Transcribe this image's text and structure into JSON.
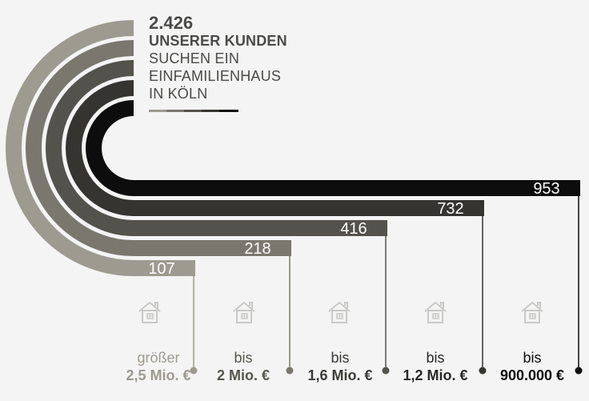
{
  "headline": {
    "total": "2.426",
    "line1": "UNSERER KUNDEN",
    "line2": "SUCHEN EIN",
    "line3": "EINFAMILIENHAUS",
    "line4": "IN KÖLN"
  },
  "chart_data": {
    "type": "bar",
    "categories": [
      "größer 2,5 Mio. €",
      "bis 2 Mio. €",
      "bis 1,6 Mio. €",
      "bis 1,2 Mio. €",
      "bis 900.000 €"
    ],
    "values": [
      107,
      218,
      416,
      732,
      953
    ],
    "title": "2.426 UNSERER KUNDEN SUCHEN EIN EINFAMILIENHAUS IN KÖLN"
  },
  "labels": [
    {
      "l1": "größer",
      "l2": "2,5 Mio. €"
    },
    {
      "l1": "bis",
      "l2": "2 Mio. €"
    },
    {
      "l1": "bis",
      "l2": "1,6 Mio. €"
    },
    {
      "l1": "bis",
      "l2": "1,2 Mio. €"
    },
    {
      "l1": "bis",
      "l2": "900.000 €"
    }
  ],
  "colors": [
    "#9d9a90",
    "#7a776e",
    "#54524c",
    "#353431",
    "#0d0d0d"
  ],
  "label_colors": [
    "#9d9a90",
    "#57554f",
    "#3c3b38",
    "#2a2927",
    "#0d0d0d"
  ],
  "icon_name": "house-icon"
}
